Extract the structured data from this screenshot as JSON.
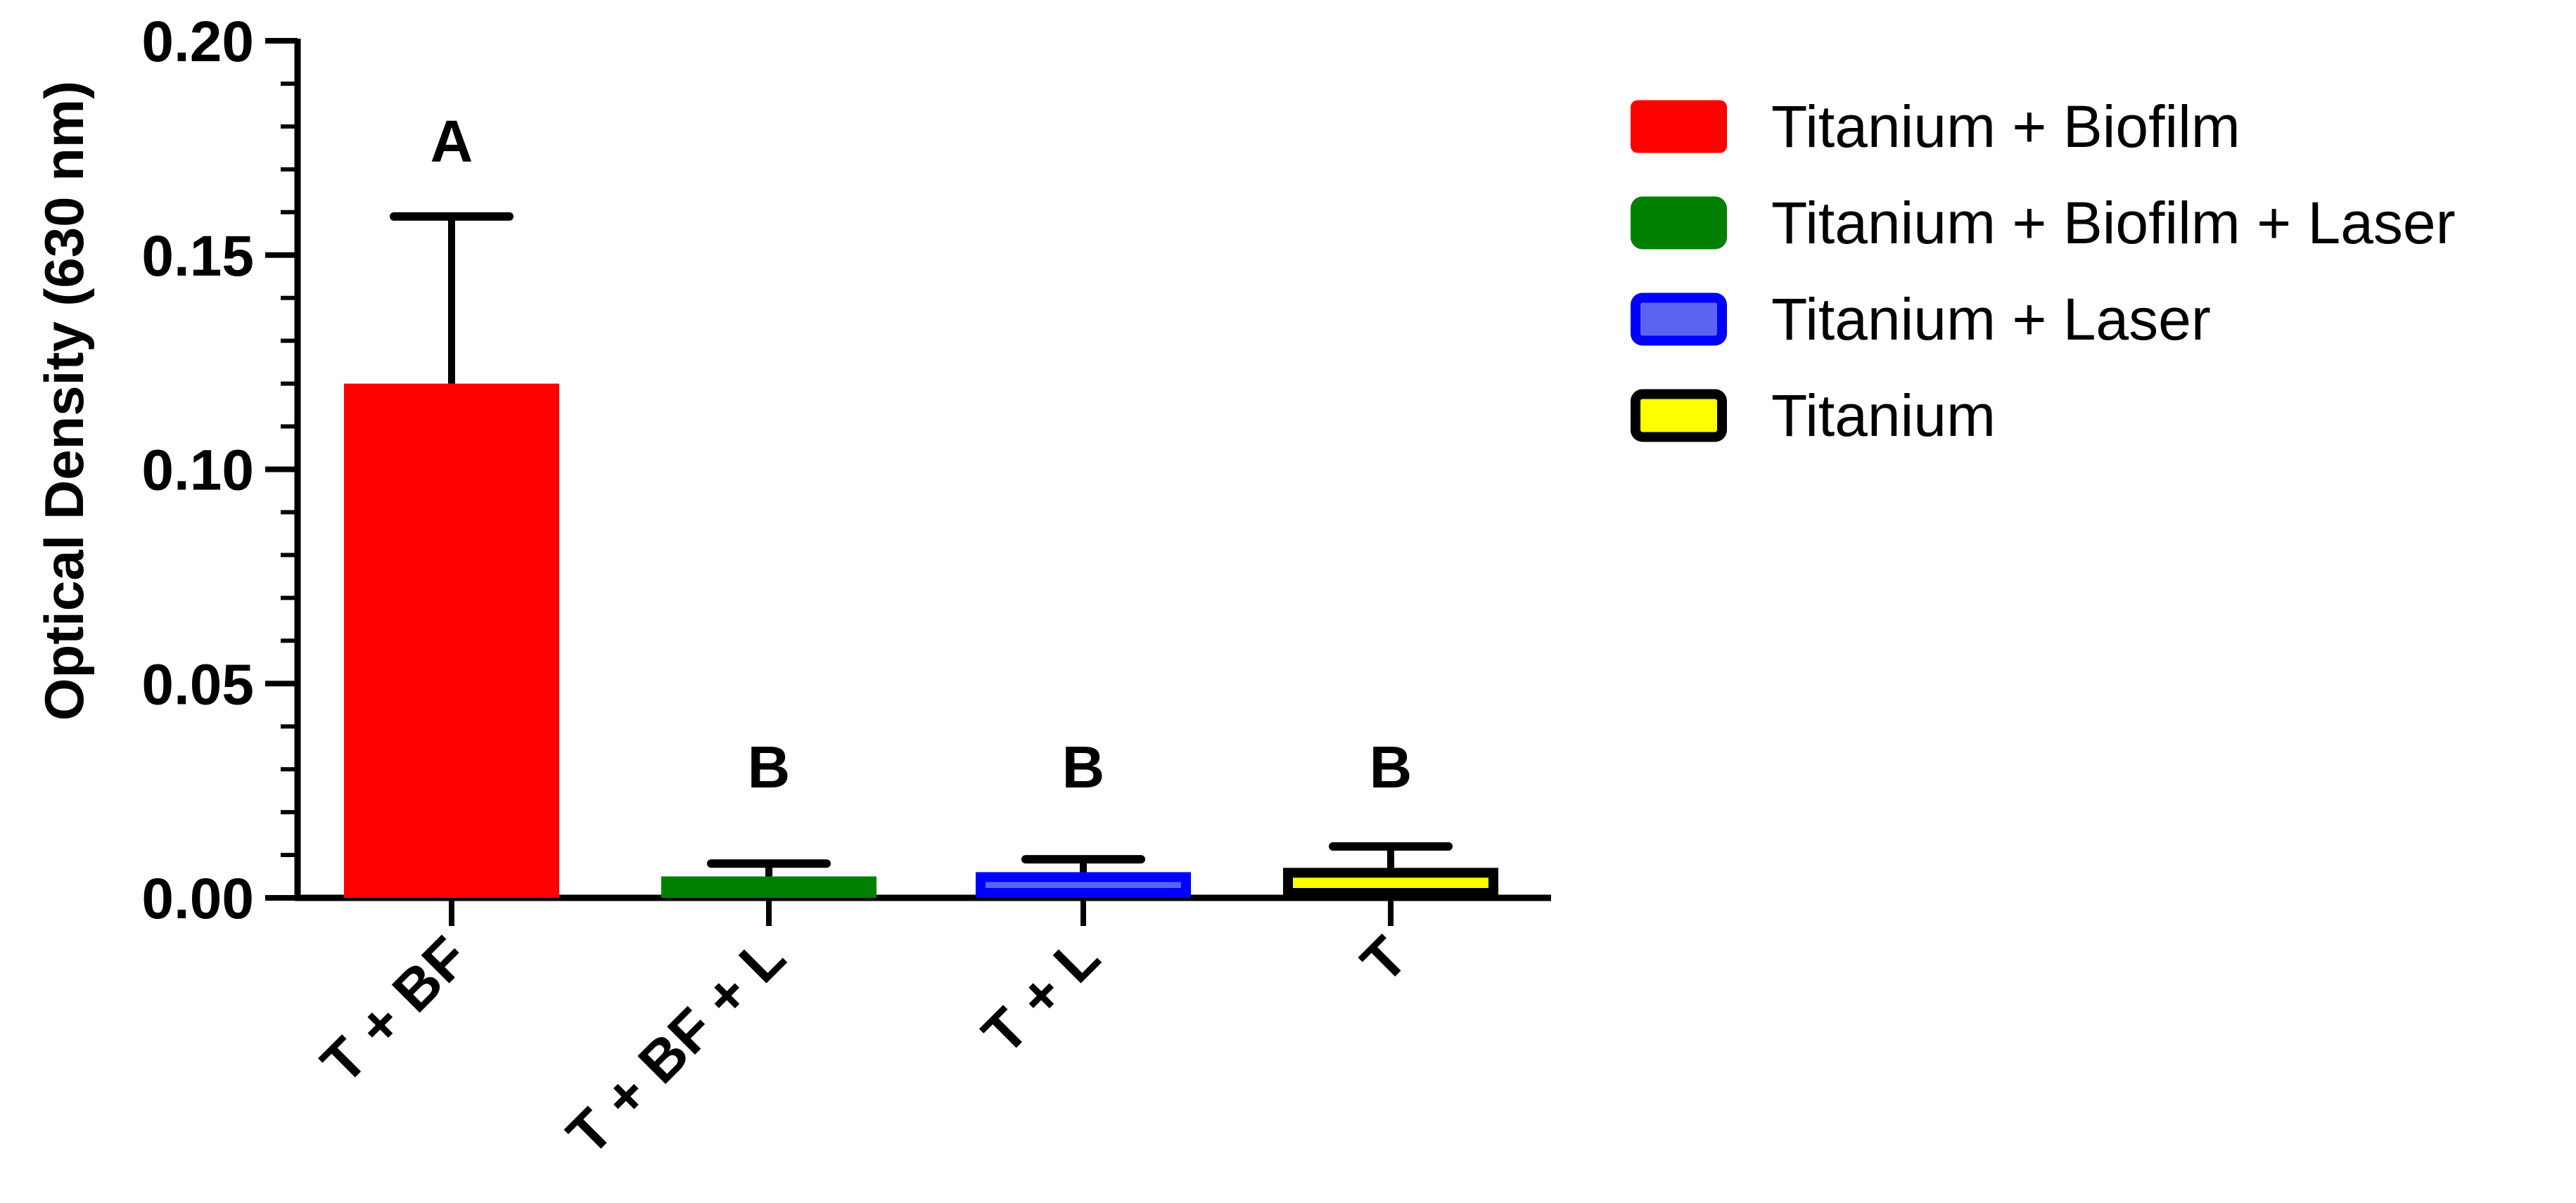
{
  "chart_data": {
    "type": "bar",
    "title": "",
    "xlabel": "",
    "ylabel": "Optical Density (630 nm)",
    "ylim": [
      0,
      0.2
    ],
    "y_ticks": [
      "0.00",
      "0.05",
      "0.10",
      "0.15",
      "0.20"
    ],
    "y_tick_values": [
      0,
      0.05,
      0.1,
      0.15,
      0.2
    ],
    "y_minor_step": 0.01,
    "grid": false,
    "legend_position": "top-right",
    "categories": [
      "T + BF",
      "T + BF + L",
      "T + L",
      "T"
    ],
    "values": [
      0.12,
      0.005,
      0.006,
      0.007
    ],
    "error_upper": [
      0.159,
      0.008,
      0.009,
      0.012
    ],
    "significance_letters": [
      "A",
      "B",
      "B",
      "B"
    ],
    "series": [
      {
        "name": "Titanium + Biofilm",
        "fill": "#ff0000",
        "stroke": "#ff0000"
      },
      {
        "name": "Titanium + Biofilm + Laser",
        "fill": "#008000",
        "stroke": "#008000"
      },
      {
        "name": "Titanium + Laser",
        "fill": "#5a64f0",
        "stroke": "#0000ff"
      },
      {
        "name": "Titanium",
        "fill": "#ffff00",
        "stroke": "#000000"
      }
    ]
  }
}
